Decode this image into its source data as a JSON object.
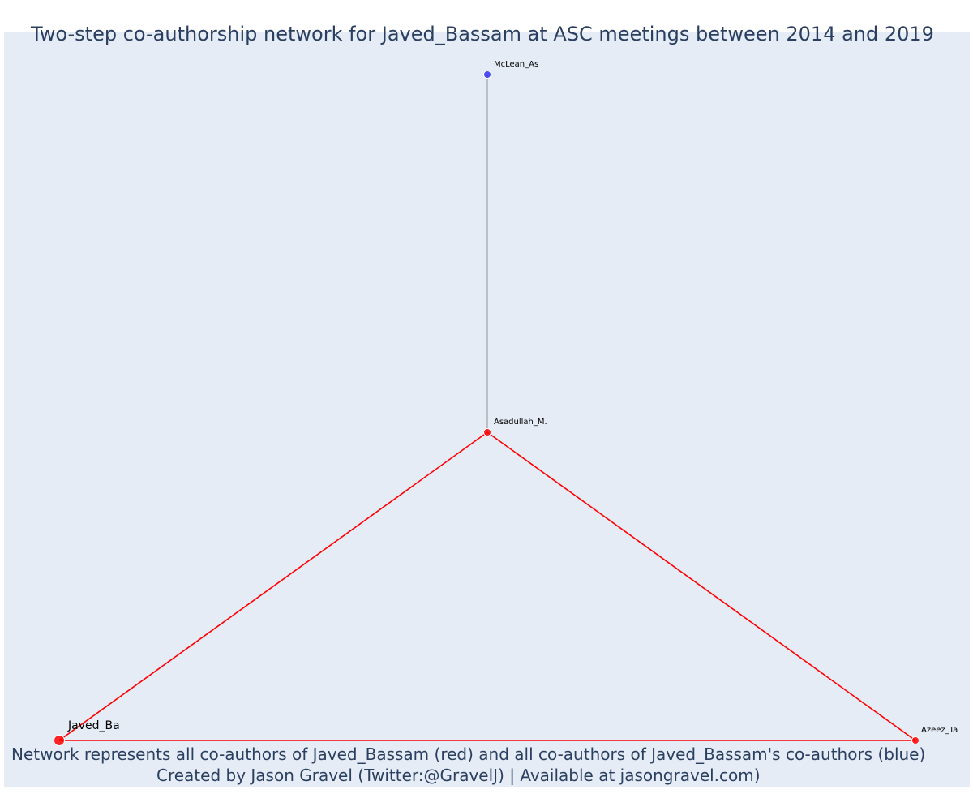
{
  "title": "Two-step co-authorship network for Javed_Bassam at ASC meetings between 2014 and 2019",
  "caption_line1": "Network represents all co-authors of Javed_Bassam (red) and all co-authors of Javed_Bassam's co-authors (blue)",
  "caption_line2": "Created by Jason Gravel (Twitter:@GravelJ) | Available at jasongravel.com)",
  "colors": {
    "red": "#ff0000",
    "blue": "#3333ee",
    "edge_gray": "#888888",
    "background": "#e5ecf6"
  },
  "nodes": [
    {
      "id": "javed",
      "label": "Javed_Ba",
      "color": "red",
      "role": "focal"
    },
    {
      "id": "asadullah",
      "label": "Asadullah_M.",
      "color": "red",
      "role": "co-author"
    },
    {
      "id": "azeez",
      "label": "Azeez_Ta",
      "color": "red",
      "role": "co-author"
    },
    {
      "id": "mclean",
      "label": "McLean_As",
      "color": "blue",
      "role": "second-step"
    }
  ],
  "edges": [
    {
      "source": "javed",
      "target": "asadullah",
      "color": "red"
    },
    {
      "source": "javed",
      "target": "azeez",
      "color": "red"
    },
    {
      "source": "asadullah",
      "target": "azeez",
      "color": "red"
    },
    {
      "source": "asadullah",
      "target": "mclean",
      "color": "gray"
    }
  ]
}
